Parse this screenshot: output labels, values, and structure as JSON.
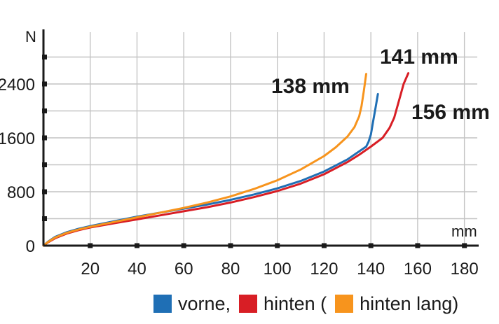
{
  "chart_data": {
    "type": "line",
    "xlabel": "mm",
    "ylabel": "N",
    "xlim": [
      0,
      180
    ],
    "ylim": [
      0,
      3000
    ],
    "x_ticks": [
      20,
      40,
      60,
      80,
      100,
      120,
      140,
      160,
      180
    ],
    "y_ticks": [
      0,
      800,
      1600,
      2400
    ],
    "grid": true,
    "legend_position": "bottom",
    "legend": [
      {
        "label": "vorne,",
        "color": "#1f6fb5"
      },
      {
        "label": "hinten (",
        "color": "#d81e25"
      },
      {
        "label": "hinten lang)",
        "color": "#f7941d"
      }
    ],
    "series": [
      {
        "color": "#1f6fb5",
        "x": [
          0,
          2,
          5,
          10,
          15,
          20,
          30,
          40,
          50,
          60,
          70,
          80,
          90,
          100,
          110,
          120,
          130,
          135,
          138,
          139,
          140,
          141,
          142,
          143
        ],
        "y": [
          0,
          60,
          130,
          200,
          250,
          290,
          360,
          430,
          490,
          550,
          610,
          680,
          760,
          850,
          960,
          1100,
          1280,
          1400,
          1470,
          1540,
          1650,
          1850,
          2050,
          2250
        ]
      },
      {
        "color": "#d81e25",
        "x": [
          0,
          2,
          5,
          10,
          15,
          20,
          30,
          40,
          50,
          60,
          70,
          80,
          90,
          100,
          110,
          120,
          130,
          135,
          140,
          145,
          148,
          150,
          152,
          154,
          156
        ],
        "y": [
          0,
          50,
          110,
          180,
          230,
          270,
          330,
          390,
          450,
          510,
          570,
          640,
          720,
          810,
          920,
          1060,
          1240,
          1350,
          1470,
          1600,
          1750,
          1900,
          2150,
          2400,
          2560
        ]
      },
      {
        "color": "#f7941d",
        "x": [
          0,
          2,
          5,
          10,
          15,
          20,
          30,
          40,
          50,
          60,
          70,
          80,
          90,
          100,
          110,
          120,
          125,
          130,
          133,
          135,
          136,
          137,
          138
        ],
        "y": [
          0,
          55,
          120,
          190,
          240,
          280,
          350,
          420,
          490,
          560,
          640,
          730,
          840,
          970,
          1130,
          1330,
          1460,
          1620,
          1760,
          1920,
          2070,
          2300,
          2550
        ]
      }
    ],
    "annotations": [
      "138 mm",
      "141 mm",
      "156 mm"
    ]
  }
}
